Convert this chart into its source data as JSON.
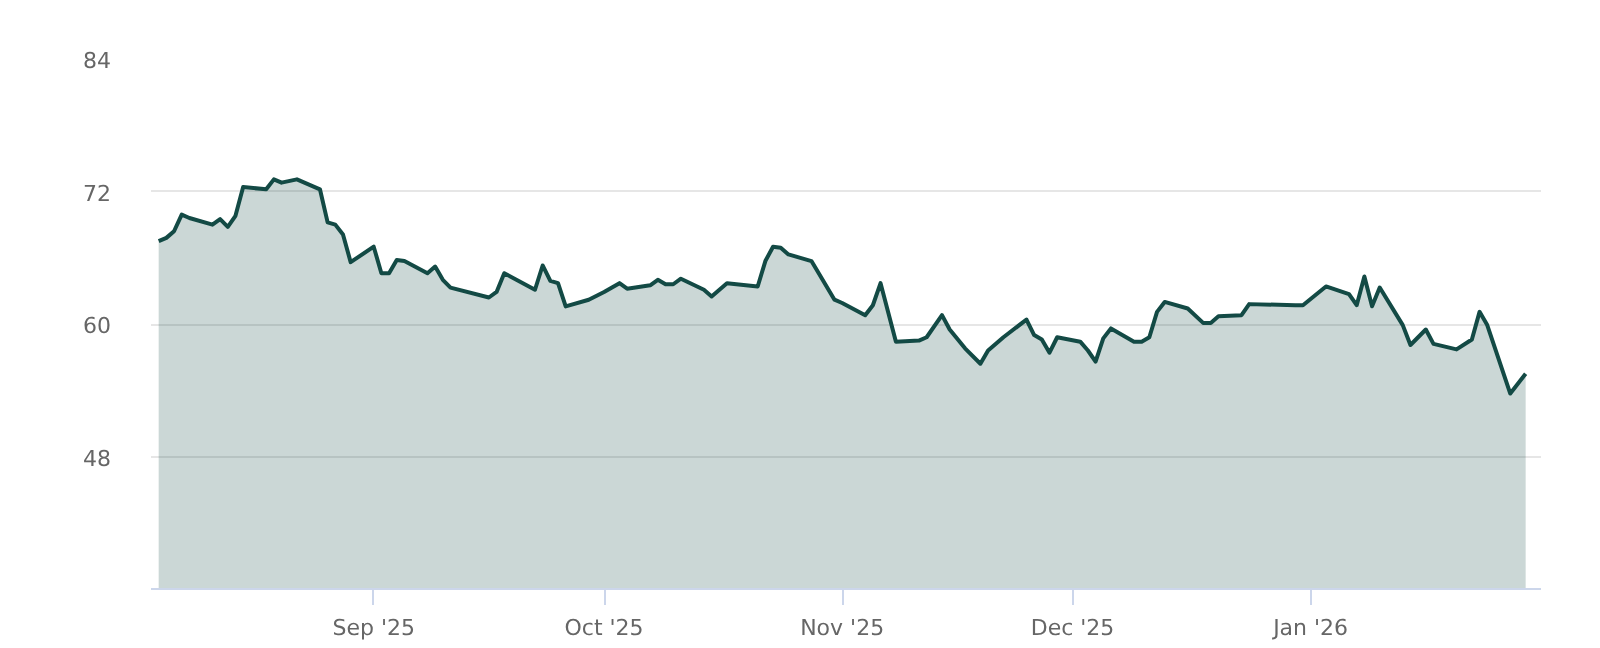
{
  "chart_data": {
    "type": "area",
    "x": [
      "2025-08-04",
      "2025-08-05",
      "2025-08-06",
      "2025-08-07",
      "2025-08-08",
      "2025-08-11",
      "2025-08-12",
      "2025-08-13",
      "2025-08-14",
      "2025-08-15",
      "2025-08-18",
      "2025-08-19",
      "2025-08-20",
      "2025-08-22",
      "2025-08-25",
      "2025-08-26",
      "2025-08-27",
      "2025-08-28",
      "2025-08-29",
      "2025-09-01",
      "2025-09-02",
      "2025-09-03",
      "2025-09-04",
      "2025-09-05",
      "2025-09-08",
      "2025-09-09",
      "2025-09-10",
      "2025-09-11",
      "2025-09-16",
      "2025-09-17",
      "2025-09-18",
      "2025-09-22",
      "2025-09-23",
      "2025-09-24",
      "2025-09-25",
      "2025-09-26",
      "2025-09-29",
      "2025-10-01",
      "2025-10-03",
      "2025-10-04",
      "2025-10-07",
      "2025-10-08",
      "2025-10-09",
      "2025-10-10",
      "2025-10-11",
      "2025-10-14",
      "2025-10-15",
      "2025-10-17",
      "2025-10-21",
      "2025-10-22",
      "2025-10-23",
      "2025-10-24",
      "2025-10-25",
      "2025-10-28",
      "2025-10-31",
      "2025-11-01",
      "2025-11-04",
      "2025-11-05",
      "2025-11-06",
      "2025-11-08",
      "2025-11-11",
      "2025-11-12",
      "2025-11-14",
      "2025-11-15",
      "2025-11-17",
      "2025-11-19",
      "2025-11-20",
      "2025-11-22",
      "2025-11-25",
      "2025-11-26",
      "2025-11-27",
      "2025-11-28",
      "2025-11-29",
      "2025-12-02",
      "2025-12-03",
      "2025-12-04",
      "2025-12-05",
      "2025-12-06",
      "2025-12-09",
      "2025-12-10",
      "2025-12-11",
      "2025-12-12",
      "2025-12-13",
      "2025-12-16",
      "2025-12-18",
      "2025-12-19",
      "2025-12-20",
      "2025-12-23",
      "2025-12-24",
      "2025-12-30",
      "2025-12-31",
      "2026-01-03",
      "2026-01-06",
      "2026-01-07",
      "2026-01-08",
      "2026-01-09",
      "2026-01-10",
      "2026-01-13",
      "2026-01-14",
      "2026-01-16",
      "2026-01-17",
      "2026-01-20",
      "2026-01-22",
      "2026-01-23",
      "2026-01-24",
      "2026-01-27",
      "2026-01-29"
    ],
    "series": [
      {
        "color": "#134a45",
        "values": [
          67.5,
          67.8,
          68.4,
          69.9,
          69.6,
          69.0,
          69.5,
          68.8,
          69.8,
          72.4,
          72.2,
          73.1,
          72.8,
          73.1,
          72.2,
          69.2,
          69.0,
          68.1,
          65.6,
          67.0,
          64.6,
          64.6,
          65.8,
          65.7,
          64.6,
          65.2,
          64.0,
          63.3,
          62.4,
          62.9,
          64.6,
          63.1,
          65.3,
          63.9,
          63.7,
          61.6,
          62.2,
          62.9,
          63.7,
          63.2,
          63.5,
          64.0,
          63.6,
          63.6,
          64.1,
          63.1,
          62.5,
          63.7,
          63.4,
          65.7,
          67.0,
          66.9,
          66.3,
          65.7,
          62.2,
          61.9,
          60.8,
          61.7,
          63.7,
          58.4,
          58.5,
          58.8,
          60.8,
          59.5,
          57.8,
          56.4,
          57.6,
          58.8,
          60.4,
          59.0,
          58.6,
          57.4,
          58.8,
          58.4,
          57.6,
          56.6,
          58.7,
          59.6,
          58.4,
          58.4,
          58.8,
          61.1,
          62.0,
          61.4,
          60.1,
          60.1,
          60.7,
          60.8,
          61.8,
          61.7,
          61.7,
          63.4,
          62.7,
          61.7,
          64.3,
          61.6,
          63.3,
          59.9,
          58.1,
          59.5,
          58.2,
          57.7,
          58.6,
          61.1,
          59.9,
          53.7,
          55.5
        ]
      }
    ],
    "xlim": [
      "2025-08-03",
      "2026-01-31"
    ],
    "xticks": [
      {
        "value": "2025-09-01",
        "label": "Sep '25"
      },
      {
        "value": "2025-10-01",
        "label": "Oct '25"
      },
      {
        "value": "2025-11-01",
        "label": "Nov '25"
      },
      {
        "value": "2025-12-01",
        "label": "Dec '25"
      },
      {
        "value": "2026-01-01",
        "label": "Jan '26"
      }
    ],
    "ylim": [
      36,
      84
    ],
    "yticks": [
      48,
      60,
      72,
      84
    ],
    "grid": "y"
  }
}
